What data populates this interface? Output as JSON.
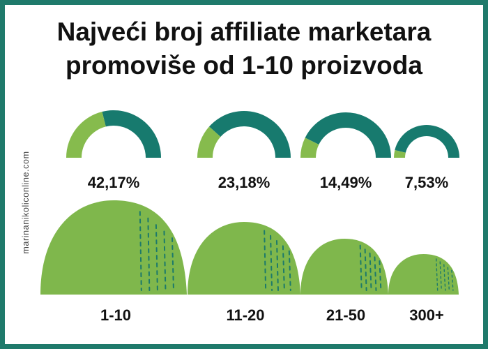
{
  "title": {
    "line1": "Najveći broj affiliate marketara",
    "line2": "promoviše od 1-10 proizvoda"
  },
  "watermark": "marinanikoliconline.com",
  "colors": {
    "frame": "#1f7a6b",
    "dark_teal": "#177a6e",
    "light_green": "#86bb4d",
    "hill_green": "#7fb74c",
    "dots": "#1d7a6a"
  },
  "chart_data": {
    "type": "pie",
    "categories": [
      "1-10",
      "11-20",
      "21-50",
      "300+"
    ],
    "values": [
      42.17,
      23.18,
      14.49,
      7.53
    ],
    "value_labels": [
      "42,17%",
      "23,18%",
      "14,49%",
      "7,53%"
    ],
    "unit": "%"
  }
}
